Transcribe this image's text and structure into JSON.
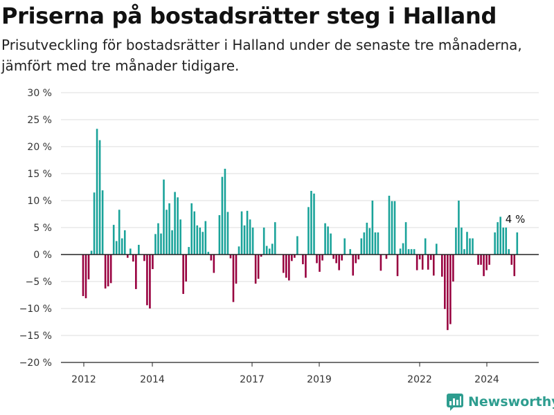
{
  "header": {
    "title": "Priserna på bostadsrätter steg i Halland",
    "subtitle": "Prisutveckling för bostadsrätter i Halland under de senaste tre månaderna, jämfört med tre månader tidigare."
  },
  "brand": {
    "name": "Newsworthy",
    "icon": "newsworthy-logo-icon"
  },
  "chart_data": {
    "type": "bar",
    "y_ticks": [
      30,
      25,
      20,
      15,
      10,
      5,
      0,
      -5,
      -10,
      -15,
      -20
    ],
    "y_tick_labels": [
      "30 %",
      "25 %",
      "20 %",
      "15 %",
      "10 %",
      "5 %",
      "0 %",
      "−5 %",
      "−10 %",
      "−15 %",
      "−20 %"
    ],
    "ylim": [
      -20,
      30
    ],
    "x_ticks": [
      "2012",
      "2014",
      "2017",
      "2019",
      "2022",
      "2024"
    ],
    "grid": true,
    "colors": {
      "positive": "#1aa39a",
      "negative": "#98003f",
      "grid": "#dddddd",
      "zero": "#222222"
    },
    "annotation": {
      "text": "4 %",
      "index": 156
    },
    "values": [
      -7.7,
      -8.1,
      -4.6,
      0.7,
      11.5,
      23.3,
      21.2,
      11.9,
      -6.3,
      -5.9,
      -5.3,
      5.5,
      2.5,
      8.3,
      3,
      4.5,
      -0.6,
      1.1,
      -1.3,
      -6.4,
      1.8,
      0,
      -1.2,
      -9.4,
      -10,
      -2.7,
      3.8,
      5.8,
      3.9,
      13.9,
      8.3,
      9.5,
      4.5,
      11.6,
      10.6,
      6.5,
      -7.3,
      -5,
      1.4,
      9.5,
      8,
      5.4,
      5,
      4.2,
      6.2,
      0.5,
      -1.1,
      -3.4,
      0,
      7.3,
      14.4,
      15.9,
      7.9,
      -0.7,
      -8.8,
      -5.4,
      1.5,
      8,
      5.4,
      8.1,
      6.5,
      5,
      -5.4,
      -4.5,
      -0.4,
      5,
      1.6,
      1.1,
      2,
      6,
      0,
      0,
      -3.4,
      -4.3,
      -4.8,
      -1.2,
      -0.6,
      3.4,
      0,
      -1.8,
      -4.3,
      8.8,
      11.8,
      11.3,
      -1.6,
      -3.2,
      -1.1,
      5.8,
      5.2,
      3.9,
      -0.8,
      -1.6,
      -2.9,
      -1.1,
      3,
      0,
      1,
      -3.9,
      -1.6,
      -0.9,
      3,
      4.1,
      5.9,
      4.9,
      10,
      4.1,
      4.1,
      -3,
      0,
      -0.8,
      10.9,
      9.9,
      9.9,
      -4,
      1.1,
      2.1,
      6,
      1,
      1,
      1,
      -2.9,
      -0.9,
      -2.8,
      3,
      -2.8,
      -1,
      -3.9,
      2,
      0,
      -4.1,
      -10.1,
      -14,
      -12.9,
      -5,
      5,
      10,
      5,
      1,
      4.2,
      3,
      3,
      0,
      -1.9,
      -1.9,
      -4,
      -2.9,
      -1.9,
      0,
      4.1,
      6,
      7,
      5,
      5,
      1,
      -1.9,
      -4,
      4.1
    ]
  }
}
